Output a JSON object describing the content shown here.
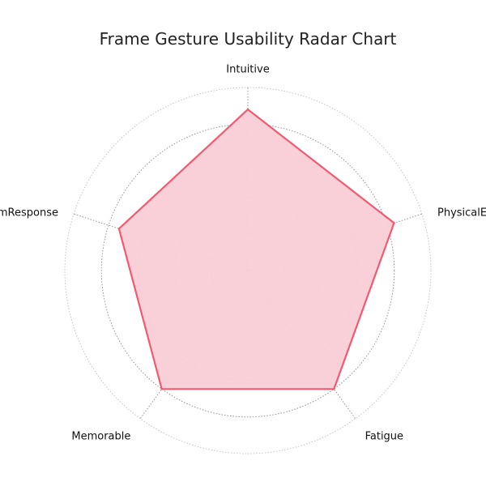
{
  "chart_data": {
    "type": "radar",
    "title": "Frame Gesture Usability Radar Chart",
    "categories": [
      "Intuitive",
      "PhysicalEffort",
      "Fatigue",
      "Memorable",
      "SystemResponse"
    ],
    "series": [
      {
        "values": [
          4.4,
          4.2,
          4.0,
          4.0,
          3.7
        ]
      }
    ],
    "rlim": [
      0,
      5
    ],
    "ring_values": [
      1,
      2,
      3,
      4,
      5
    ],
    "grid": true,
    "legend": "none"
  },
  "colors": {
    "series_line": "#F25A70",
    "series_fill": "#F9CDD6",
    "grid_inner": "#8A8A8A",
    "grid_outer": "#BFBFBF"
  }
}
